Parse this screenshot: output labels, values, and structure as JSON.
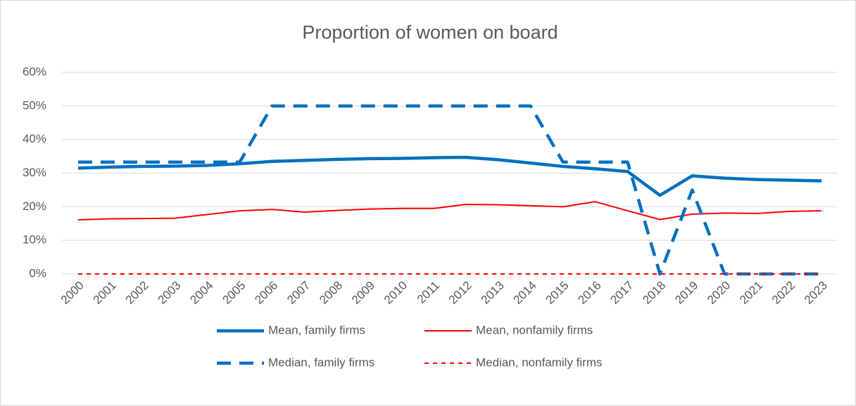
{
  "chart_data": {
    "type": "line",
    "title": "Proportion of women on board",
    "categories": [
      "2000",
      "2001",
      "2002",
      "2003",
      "2004",
      "2005",
      "2006",
      "2007",
      "2008",
      "2009",
      "2010",
      "2011",
      "2012",
      "2013",
      "2014",
      "2015",
      "2016",
      "2017",
      "2018",
      "2019",
      "2020",
      "2021",
      "2022",
      "2023"
    ],
    "series": [
      {
        "name": "Mean, family firms",
        "color": "#0070c0",
        "line_style": "solid",
        "line_weight": "thick",
        "values": [
          31.5,
          31.8,
          32.0,
          32.1,
          32.3,
          32.8,
          33.5,
          33.8,
          34.1,
          34.3,
          34.4,
          34.6,
          34.7,
          34.0,
          33.0,
          32.0,
          31.3,
          30.5,
          23.4,
          29.2,
          28.5,
          28.1,
          27.9,
          27.7
        ]
      },
      {
        "name": "Mean, nonfamily firms",
        "color": "#ff0000",
        "line_style": "solid",
        "line_weight": "thin",
        "values": [
          16.1,
          16.4,
          16.5,
          16.6,
          17.7,
          18.8,
          19.2,
          18.4,
          18.9,
          19.3,
          19.5,
          19.5,
          20.7,
          20.6,
          20.3,
          20.0,
          21.5,
          18.8,
          16.2,
          17.8,
          18.1,
          18.0,
          18.6,
          18.8
        ]
      },
      {
        "name": "Median, family firms",
        "color": "#0070c0",
        "line_style": "dashed",
        "line_weight": "thick",
        "values": [
          33.3,
          33.3,
          33.3,
          33.3,
          33.3,
          33.3,
          50,
          50,
          50,
          50,
          50,
          50,
          50,
          50,
          50,
          33.3,
          33.3,
          33.3,
          0,
          25,
          0,
          0,
          0,
          0
        ]
      },
      {
        "name": "Median, nonfamily firms",
        "color": "#ff0000",
        "line_style": "dashed",
        "line_weight": "thin",
        "values": [
          0,
          0,
          0,
          0,
          0,
          0,
          0,
          0,
          0,
          0,
          0,
          0,
          0,
          0,
          0,
          0,
          0,
          0,
          0,
          0,
          0,
          0,
          0,
          0
        ]
      }
    ],
    "ylim": [
      0,
      60
    ],
    "yticks": [
      {
        "value": 0,
        "label": "0%"
      },
      {
        "value": 10,
        "label": "10%"
      },
      {
        "value": 20,
        "label": "20%"
      },
      {
        "value": 30,
        "label": "30%"
      },
      {
        "value": 40,
        "label": "40%"
      },
      {
        "value": 50,
        "label": "50%"
      },
      {
        "value": 60,
        "label": "60%"
      }
    ],
    "grid": true,
    "legend": "bottom"
  }
}
